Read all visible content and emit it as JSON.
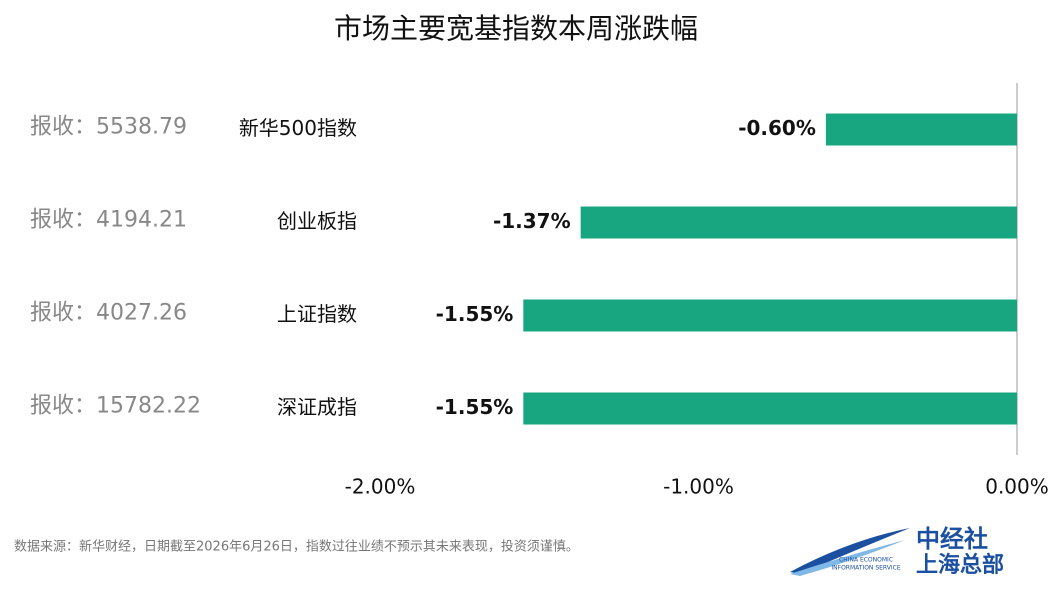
{
  "chart_data": {
    "type": "hbar",
    "title": "市场主要宽基指数本周涨跌幅",
    "categories": [
      "新华500指数",
      "创业板指",
      "上证指数",
      "深证成指"
    ],
    "values": [
      -0.6,
      -1.37,
      -1.55,
      -1.55
    ],
    "value_labels": [
      "-0.60%",
      "-1.37%",
      "-1.55%",
      "-1.55%"
    ],
    "annotations": [
      "报收：5538.79",
      "报收：4194.21",
      "报收：4027.26",
      "报收：15782.22"
    ],
    "color": "#18a681",
    "xlim": [
      -2,
      0
    ],
    "xticks": [
      {
        "value": -2,
        "label": "-2.00%"
      },
      {
        "value": -1,
        "label": "-1.00%"
      },
      {
        "value": 0,
        "label": "0.00%"
      }
    ],
    "source": "数据来源：新华财经，日期截至2026年6月26日，指数过往业绩不预示其未来表现，投资须谨慎。"
  },
  "logo": {
    "name_line1": "中经社",
    "name_line2": "上海总部",
    "english_line1": "CHINA ECONOMIC",
    "english_line2": "INFORMATION SERVICE"
  }
}
